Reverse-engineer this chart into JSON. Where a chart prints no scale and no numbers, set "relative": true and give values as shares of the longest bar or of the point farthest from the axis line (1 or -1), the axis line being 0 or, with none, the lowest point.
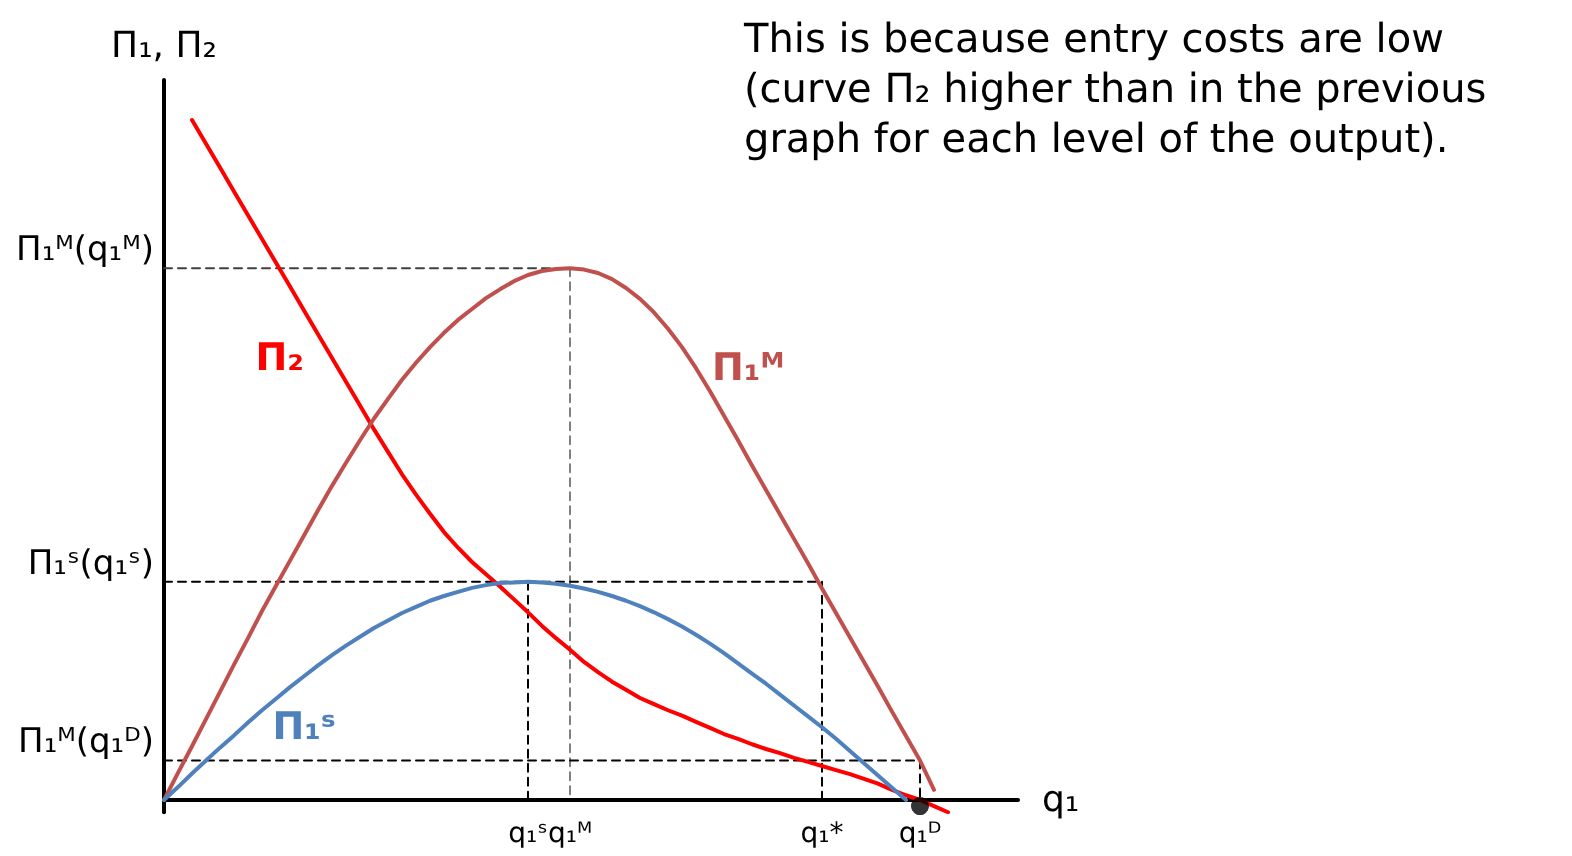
{
  "chart_data": {
    "type": "line",
    "relative": true,
    "marker": "none",
    "xlabel": "q₁",
    "ylabel": "Π₁, Π₂",
    "categories": [
      null,
      null,
      null,
      null,
      null,
      null,
      null,
      null,
      null,
      null,
      null,
      null,
      null,
      null,
      null,
      null,
      null,
      null,
      null,
      null,
      null,
      null,
      null,
      null,
      null,
      null,
      "q₁ˢ",
      null,
      null,
      "q₁ᴹ",
      null,
      null,
      null,
      null,
      null,
      null,
      null,
      null,
      null,
      null,
      null,
      null,
      null,
      null,
      null,
      null,
      null,
      "q₁*",
      null,
      null,
      null,
      null,
      null,
      null,
      "q₁ᴰ",
      null,
      null,
      null,
      null,
      null,
      null,
      null
    ],
    "series": [
      {
        "color": "#404040",
        "line_style": "dashed",
        "values": [
          0.782,
          0.782,
          0.782,
          0.782,
          0.782,
          0.782,
          0.782,
          0.782,
          0.782,
          0.782,
          0.782,
          0.782,
          0.782,
          0.782,
          0.782,
          0.782,
          0.782,
          0.782,
          0.782,
          0.782,
          0.782,
          0.782,
          0.782,
          0.782,
          0.782,
          0.782,
          0.782,
          0.782,
          0.782,
          0.782,
          null,
          null,
          null,
          null,
          null,
          null,
          null,
          null,
          null,
          null,
          null,
          null,
          null,
          null,
          null,
          null,
          null,
          null,
          null,
          null,
          null,
          null,
          null,
          null,
          null,
          null,
          null,
          null,
          null,
          null,
          null,
          null
        ]
      },
      {
        "color": "#808080",
        "line_style": "dashed",
        "x": [
          "q₁ᴹ",
          "q₁ᴹ"
        ],
        "values": [
          0.782,
          0
        ]
      },
      {
        "color": "#000000",
        "line_style": "dashed",
        "values": [
          0.321,
          0.321,
          0.321,
          0.321,
          0.321,
          0.321,
          0.321,
          0.321,
          0.321,
          0.321,
          0.321,
          0.321,
          0.321,
          0.321,
          0.321,
          0.321,
          0.321,
          0.321,
          0.321,
          0.321,
          0.321,
          0.321,
          0.321,
          0.321,
          0.321,
          0.321,
          0.321,
          0.321,
          0.321,
          0.321,
          0.321,
          0.321,
          0.321,
          0.321,
          0.321,
          0.321,
          0.321,
          0.321,
          0.321,
          0.321,
          0.321,
          0.321,
          0.321,
          0.321,
          0.321,
          0.321,
          0.321,
          0.321,
          null,
          null,
          null,
          null,
          null,
          null,
          null,
          null,
          null,
          null,
          null,
          null,
          null,
          null
        ]
      },
      {
        "color": "#000000",
        "line_style": "dashed",
        "x": [
          "q₁ˢ",
          "q₁ˢ"
        ],
        "values": [
          0.321,
          0
        ]
      },
      {
        "color": "#000000",
        "line_style": "dashed",
        "x": [
          "q₁*",
          "q₁*"
        ],
        "values": [
          0.321,
          0
        ]
      },
      {
        "color": "#000000",
        "line_style": "dashed",
        "values": [
          0.058,
          0.058,
          0.058,
          0.058,
          0.058,
          0.058,
          0.058,
          0.058,
          0.058,
          0.058,
          0.058,
          0.058,
          0.058,
          0.058,
          0.058,
          0.058,
          0.058,
          0.058,
          0.058,
          0.058,
          0.058,
          0.058,
          0.058,
          0.058,
          0.058,
          0.058,
          0.058,
          0.058,
          0.058,
          0.058,
          0.058,
          0.058,
          0.058,
          0.058,
          0.058,
          0.058,
          0.058,
          0.058,
          0.058,
          0.058,
          0.058,
          0.058,
          0.058,
          0.058,
          0.058,
          0.058,
          0.058,
          0.058,
          0.058,
          0.058,
          0.058,
          0.058,
          0.058,
          0.058,
          0.058,
          null,
          null,
          null,
          null,
          null,
          null,
          null
        ]
      },
      {
        "color": "#000000",
        "line_style": "dashed",
        "x": [
          "q₁ᴰ",
          "q₁ᴰ"
        ],
        "values": [
          0.058,
          0
        ]
      },
      {
        "name": "Π₂",
        "color": "#ff0000",
        "values": [
          null,
          null,
          1.0,
          0.965,
          0.93,
          0.895,
          0.86,
          0.825,
          0.79,
          0.755,
          0.72,
          0.685,
          0.65,
          0.615,
          0.58,
          0.545,
          0.512,
          0.479,
          0.449,
          0.421,
          0.394,
          0.371,
          0.35,
          0.332,
          0.314,
          0.295,
          0.276,
          0.256,
          0.238,
          0.221,
          0.203,
          0.188,
          0.174,
          0.162,
          0.15,
          0.141,
          0.132,
          0.124,
          0.115,
          0.106,
          0.097,
          0.09,
          0.082,
          0.075,
          0.069,
          0.062,
          0.056,
          0.05,
          0.044,
          0.038,
          0.031,
          0.024,
          0.015,
          0.007,
          0,
          -0.009,
          -0.018,
          null,
          null,
          null,
          null,
          null
        ]
      },
      {
        "name": "Π₁ᴹ",
        "color": "#c0504d",
        "values": [
          0,
          0.04,
          0.079,
          0.119,
          0.159,
          0.199,
          0.238,
          0.278,
          0.315,
          0.352,
          0.389,
          0.426,
          0.462,
          0.496,
          0.529,
          0.561,
          0.59,
          0.618,
          0.643,
          0.666,
          0.687,
          0.706,
          0.722,
          0.738,
          0.751,
          0.763,
          0.772,
          0.778,
          0.781,
          0.782,
          0.78,
          0.775,
          0.766,
          0.753,
          0.737,
          0.717,
          0.693,
          0.666,
          0.635,
          0.601,
          0.565,
          0.529,
          0.492,
          0.456,
          0.42,
          0.384,
          0.348,
          0.311,
          0.275,
          0.239,
          0.203,
          0.167,
          0.13,
          0.094,
          0.058,
          0.015,
          null,
          null,
          null,
          null,
          null,
          null
        ]
      },
      {
        "name": "Π₁ˢ",
        "color": "#4f81bd",
        "values": [
          0,
          0.019,
          0.039,
          0.058,
          0.077,
          0.095,
          0.114,
          0.132,
          0.149,
          0.166,
          0.182,
          0.198,
          0.213,
          0.227,
          0.24,
          0.253,
          0.264,
          0.275,
          0.284,
          0.293,
          0.3,
          0.306,
          0.312,
          0.316,
          0.319,
          0.32,
          0.321,
          0.32,
          0.318,
          0.315,
          0.311,
          0.306,
          0.3,
          0.293,
          0.285,
          0.276,
          0.266,
          0.255,
          0.243,
          0.23,
          0.216,
          0.201,
          0.186,
          0.171,
          0.155,
          0.139,
          0.123,
          0.107,
          0.09,
          0.072,
          0.054,
          0.036,
          0.018,
          0,
          null,
          null,
          null,
          null,
          null,
          null,
          null,
          null
        ]
      },
      {
        "type": "scatter",
        "marker": "circle",
        "color": "#000000",
        "x": [
          "q₁ᴰ"
        ],
        "values": [
          -0.009
        ]
      }
    ],
    "annotations": [
      "This is because entry costs are low (curve Π₂ higher than in the previous graph for each level of the output).",
      "Π₁ᴹ(q₁ᴹ)",
      "Π₁ˢ(q₁ˢ)",
      "Π₁ᴹ(q₁ᴰ)"
    ]
  }
}
